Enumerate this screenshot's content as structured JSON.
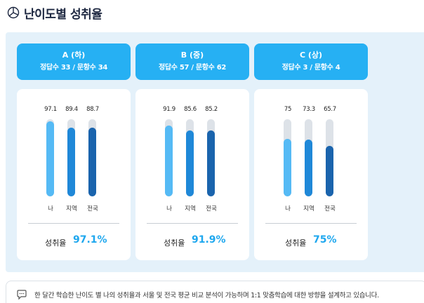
{
  "header": {
    "title": "난이도별 성취율",
    "icon": "chart-globe-icon"
  },
  "columns_labels": {
    "me": "나",
    "region": "지역",
    "nation": "전국",
    "rate_label": "성취율"
  },
  "colors": {
    "accent": "#26b0f3",
    "me": "#55baf5",
    "region": "#1f88d8",
    "nation": "#1a64ad",
    "track": "#dde2e8",
    "panel": "#e4f1fa"
  },
  "levels": [
    {
      "title": "A (하)",
      "summary": "정답수 33 / 문항수 34",
      "values": [
        "97.1",
        "89.4",
        "88.7"
      ],
      "rate": "97.1%"
    },
    {
      "title": "B (중)",
      "summary": "정답수 57 / 문항수 62",
      "values": [
        "91.9",
        "85.6",
        "85.2"
      ],
      "rate": "91.9%"
    },
    {
      "title": "C (상)",
      "summary": "정답수 3 / 문항수 4",
      "values": [
        "75",
        "73.3",
        "65.7"
      ],
      "rate": "75%"
    }
  ],
  "footer": {
    "icon": "chat-bubble-icon",
    "text": "한 달간 학습한 난이도 별 나의 성취율과 서울 및 전국 평균 비교 분석이 가능하며 1:1 맞춤학습에 대한 방향을 설계하고 있습니다."
  }
}
